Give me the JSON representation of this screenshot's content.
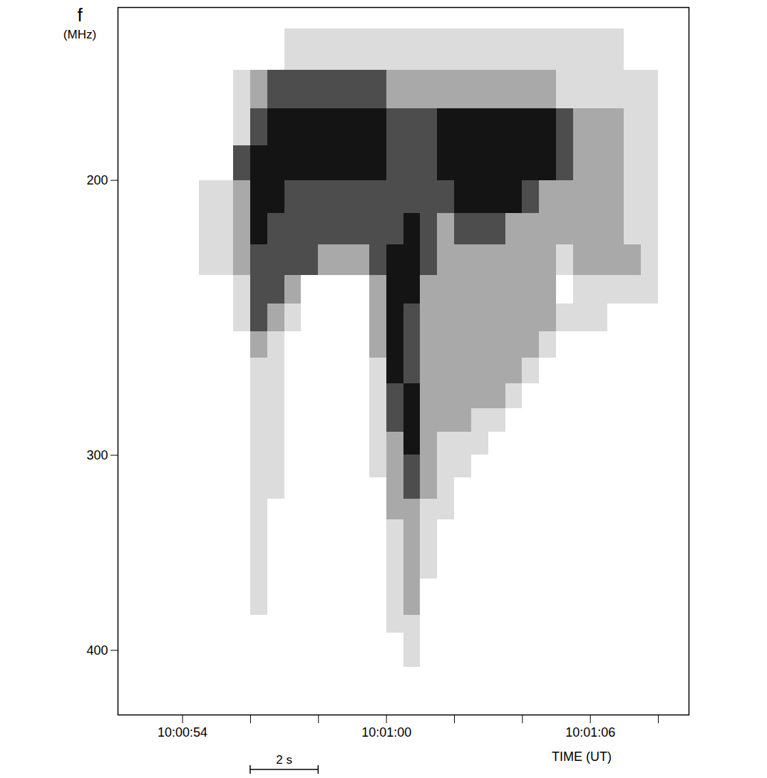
{
  "chart_data": {
    "type": "heatmap",
    "xlabel": "TIME (UT)",
    "ylabel": "f (MHz)",
    "log": "y",
    "xlim": [
      52.1,
      68.9
    ],
    "xticks": [
      {
        "value": 54,
        "label": "10:00:54"
      },
      {
        "value": 56,
        "label": null
      },
      {
        "value": 58,
        "label": null
      },
      {
        "value": 60,
        "label": "10:01:00"
      },
      {
        "value": 62,
        "label": null
      },
      {
        "value": 64,
        "label": null
      },
      {
        "value": 66,
        "label": "10:01:06"
      },
      {
        "value": 68,
        "label": null
      }
    ],
    "ylim": [
      155,
      440
    ],
    "yticks": [
      200,
      300,
      400
    ],
    "scale_bar": {
      "label": "2 s",
      "x1": 56,
      "x2": 58
    },
    "cells": {
      "levels": [
        0,
        1,
        2,
        3,
        4
      ],
      "colors": [
        "#ffffff",
        "#dcdcdc",
        "#a9a9a9",
        "#4d4d4d",
        "#141414"
      ],
      "x": [
        52.5,
        53,
        53.5,
        54,
        54.5,
        55,
        55.5,
        56,
        56.5,
        57,
        57.5,
        58,
        58.5,
        59,
        59.5,
        60,
        60.5,
        61,
        61.5,
        62,
        62.5,
        63,
        63.5,
        64,
        64.5,
        65,
        65.5,
        66,
        66.5,
        67,
        67.5,
        68
      ],
      "y": [
        160,
        170,
        180,
        190,
        200,
        210,
        220,
        230,
        240,
        250,
        260,
        270,
        280,
        290,
        300,
        310,
        320,
        330,
        340,
        350,
        360,
        370,
        380,
        390,
        400
      ],
      "values": [
        [
          0,
          0,
          0,
          0,
          0,
          0,
          0,
          0,
          0,
          1,
          1,
          1,
          1,
          1,
          1,
          1,
          1,
          1,
          1,
          1,
          1,
          1,
          1,
          1,
          1,
          1,
          1,
          1,
          1,
          0,
          0,
          0
        ],
        [
          0,
          0,
          0,
          0,
          0,
          0,
          1,
          2,
          3,
          3,
          3,
          3,
          3,
          3,
          3,
          2,
          2,
          2,
          2,
          2,
          2,
          2,
          2,
          2,
          2,
          1,
          1,
          1,
          1,
          1,
          1,
          0
        ],
        [
          0,
          0,
          0,
          0,
          0,
          0,
          1,
          3,
          4,
          4,
          4,
          4,
          4,
          4,
          4,
          3,
          3,
          3,
          4,
          4,
          4,
          4,
          4,
          4,
          4,
          3,
          2,
          2,
          2,
          1,
          1,
          0
        ],
        [
          0,
          0,
          0,
          0,
          0,
          0,
          3,
          4,
          4,
          4,
          4,
          4,
          4,
          4,
          4,
          3,
          3,
          3,
          4,
          4,
          4,
          4,
          4,
          4,
          4,
          3,
          2,
          2,
          2,
          1,
          1,
          0
        ],
        [
          0,
          0,
          0,
          0,
          1,
          1,
          2,
          4,
          4,
          3,
          3,
          3,
          3,
          3,
          3,
          3,
          3,
          3,
          3,
          4,
          4,
          4,
          4,
          3,
          2,
          2,
          2,
          2,
          2,
          1,
          1,
          0
        ],
        [
          0,
          0,
          0,
          0,
          1,
          1,
          2,
          4,
          3,
          3,
          3,
          3,
          3,
          3,
          3,
          3,
          4,
          3,
          2,
          3,
          3,
          3,
          2,
          2,
          2,
          2,
          2,
          2,
          2,
          1,
          1,
          0
        ],
        [
          0,
          0,
          0,
          0,
          1,
          1,
          2,
          3,
          3,
          3,
          3,
          2,
          2,
          2,
          3,
          4,
          4,
          3,
          2,
          2,
          2,
          2,
          2,
          2,
          2,
          1,
          2,
          2,
          2,
          2,
          1,
          0
        ],
        [
          0,
          0,
          0,
          0,
          0,
          0,
          1,
          3,
          3,
          2,
          0,
          0,
          0,
          0,
          2,
          4,
          4,
          2,
          2,
          2,
          2,
          2,
          2,
          2,
          2,
          0,
          1,
          1,
          1,
          1,
          1,
          0
        ],
        [
          0,
          0,
          0,
          0,
          0,
          0,
          1,
          3,
          2,
          1,
          0,
          0,
          0,
          0,
          2,
          4,
          3,
          2,
          2,
          2,
          2,
          2,
          2,
          2,
          2,
          1,
          1,
          1,
          0,
          0,
          0,
          0
        ],
        [
          0,
          0,
          0,
          0,
          0,
          0,
          0,
          2,
          1,
          0,
          0,
          0,
          0,
          0,
          2,
          4,
          3,
          2,
          2,
          2,
          2,
          2,
          2,
          2,
          1,
          0,
          0,
          0,
          0,
          0,
          0,
          0
        ],
        [
          0,
          0,
          0,
          0,
          0,
          0,
          0,
          1,
          1,
          0,
          0,
          0,
          0,
          0,
          1,
          4,
          3,
          2,
          2,
          2,
          2,
          2,
          2,
          1,
          0,
          0,
          0,
          0,
          0,
          0,
          0,
          0
        ],
        [
          0,
          0,
          0,
          0,
          0,
          0,
          0,
          1,
          1,
          0,
          0,
          0,
          0,
          0,
          1,
          3,
          4,
          2,
          2,
          2,
          2,
          2,
          1,
          0,
          0,
          0,
          0,
          0,
          0,
          0,
          0,
          0
        ],
        [
          0,
          0,
          0,
          0,
          0,
          0,
          0,
          1,
          1,
          0,
          0,
          0,
          0,
          0,
          1,
          3,
          4,
          2,
          2,
          2,
          1,
          1,
          0,
          0,
          0,
          0,
          0,
          0,
          0,
          0,
          0,
          0
        ],
        [
          0,
          0,
          0,
          0,
          0,
          0,
          0,
          1,
          1,
          0,
          0,
          0,
          0,
          0,
          1,
          2,
          4,
          2,
          1,
          1,
          1,
          0,
          0,
          0,
          0,
          0,
          0,
          0,
          0,
          0,
          0,
          0
        ],
        [
          0,
          0,
          0,
          0,
          0,
          0,
          0,
          1,
          1,
          0,
          0,
          0,
          0,
          0,
          1,
          2,
          3,
          2,
          1,
          1,
          0,
          0,
          0,
          0,
          0,
          0,
          0,
          0,
          0,
          0,
          0,
          0
        ],
        [
          0,
          0,
          0,
          0,
          0,
          0,
          0,
          1,
          1,
          0,
          0,
          0,
          0,
          0,
          0,
          2,
          3,
          2,
          1,
          0,
          0,
          0,
          0,
          0,
          0,
          0,
          0,
          0,
          0,
          0,
          0,
          0
        ],
        [
          0,
          0,
          0,
          0,
          0,
          0,
          0,
          1,
          0,
          0,
          0,
          0,
          0,
          0,
          0,
          2,
          2,
          1,
          1,
          0,
          0,
          0,
          0,
          0,
          0,
          0,
          0,
          0,
          0,
          0,
          0,
          0
        ],
        [
          0,
          0,
          0,
          0,
          0,
          0,
          0,
          1,
          0,
          0,
          0,
          0,
          0,
          0,
          0,
          1,
          2,
          1,
          0,
          0,
          0,
          0,
          0,
          0,
          0,
          0,
          0,
          0,
          0,
          0,
          0,
          0
        ],
        [
          0,
          0,
          0,
          0,
          0,
          0,
          0,
          1,
          0,
          0,
          0,
          0,
          0,
          0,
          0,
          1,
          2,
          1,
          0,
          0,
          0,
          0,
          0,
          0,
          0,
          0,
          0,
          0,
          0,
          0,
          0,
          0
        ],
        [
          0,
          0,
          0,
          0,
          0,
          0,
          0,
          1,
          0,
          0,
          0,
          0,
          0,
          0,
          0,
          1,
          2,
          1,
          0,
          0,
          0,
          0,
          0,
          0,
          0,
          0,
          0,
          0,
          0,
          0,
          0,
          0
        ],
        [
          0,
          0,
          0,
          0,
          0,
          0,
          0,
          1,
          0,
          0,
          0,
          0,
          0,
          0,
          0,
          1,
          2,
          0,
          0,
          0,
          0,
          0,
          0,
          0,
          0,
          0,
          0,
          0,
          0,
          0,
          0,
          0
        ],
        [
          0,
          0,
          0,
          0,
          0,
          0,
          0,
          1,
          0,
          0,
          0,
          0,
          0,
          0,
          0,
          1,
          2,
          0,
          0,
          0,
          0,
          0,
          0,
          0,
          0,
          0,
          0,
          0,
          0,
          0,
          0,
          0
        ],
        [
          0,
          0,
          0,
          0,
          0,
          0,
          0,
          0,
          0,
          0,
          0,
          0,
          0,
          0,
          0,
          1,
          1,
          0,
          0,
          0,
          0,
          0,
          0,
          0,
          0,
          0,
          0,
          0,
          0,
          0,
          0,
          0
        ],
        [
          0,
          0,
          0,
          0,
          0,
          0,
          0,
          0,
          0,
          0,
          0,
          0,
          0,
          0,
          0,
          0,
          1,
          0,
          0,
          0,
          0,
          0,
          0,
          0,
          0,
          0,
          0,
          0,
          0,
          0,
          0,
          0
        ],
        [
          0,
          0,
          0,
          0,
          0,
          0,
          0,
          0,
          0,
          0,
          0,
          0,
          0,
          0,
          0,
          0,
          1,
          0,
          0,
          0,
          0,
          0,
          0,
          0,
          0,
          0,
          0,
          0,
          0,
          0,
          0,
          0
        ]
      ]
    }
  }
}
